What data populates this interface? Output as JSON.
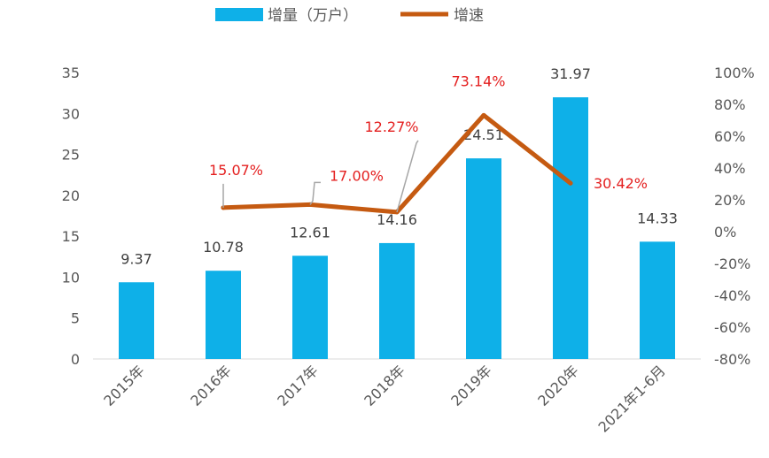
{
  "chart_data": {
    "type": "bar+line",
    "categories": [
      "2015年",
      "2016年",
      "2017年",
      "2018年",
      "2019年",
      "2020年",
      "2021年1-6月"
    ],
    "series": [
      {
        "name": "增量（万户）",
        "type": "bar",
        "axis": "left",
        "values": [
          9.37,
          10.78,
          12.61,
          14.16,
          24.51,
          31.97,
          14.33
        ],
        "labels": [
          "9.37",
          "10.78",
          "12.61",
          "14.16",
          "24.51",
          "31.97",
          "14.33"
        ],
        "color": "#0eb0e8"
      },
      {
        "name": "增速",
        "type": "line",
        "axis": "right",
        "values": [
          null,
          15.07,
          17.0,
          12.27,
          73.14,
          30.42,
          null
        ],
        "labels": [
          "",
          "15.07%",
          "17.00%",
          "12.27%",
          "73.14%",
          "30.42%",
          ""
        ],
        "color": "#c55a11",
        "label_color": "#e41f1f"
      }
    ],
    "left_axis": {
      "min": 0,
      "max": 35,
      "step": 5,
      "ticks": [
        "0",
        "5",
        "10",
        "15",
        "20",
        "25",
        "30",
        "35"
      ]
    },
    "right_axis": {
      "min": -80,
      "max": 100,
      "step": 20,
      "ticks": [
        "-80%",
        "-60%",
        "-40%",
        "-20%",
        "0%",
        "20%",
        "40%",
        "60%",
        "80%",
        "100%"
      ]
    },
    "legend_position": "top-center",
    "grid": false,
    "title": ""
  }
}
